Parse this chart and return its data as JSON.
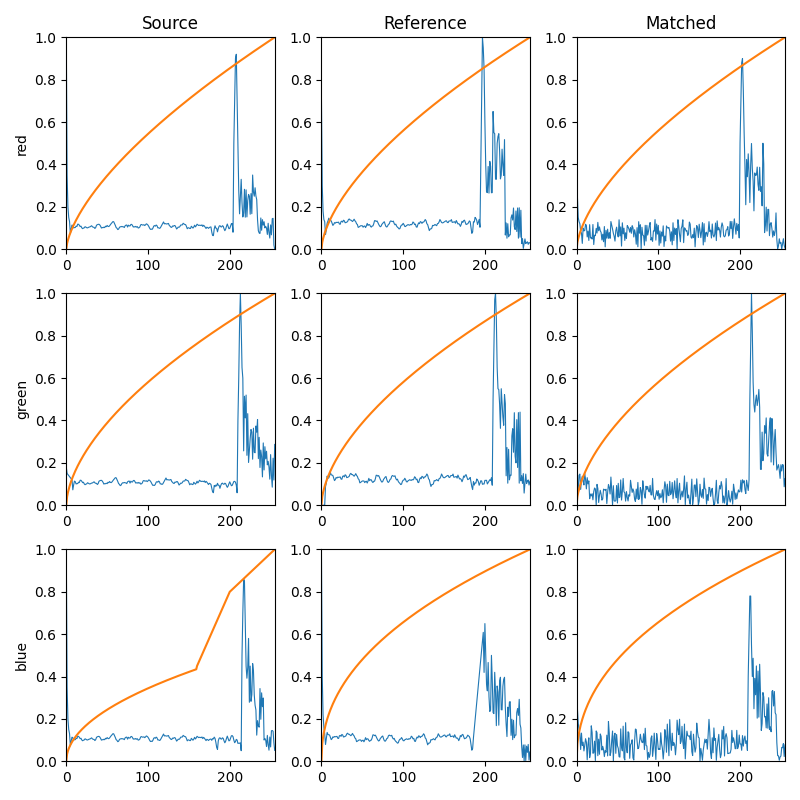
{
  "col_titles": [
    "Source",
    "Reference",
    "Matched"
  ],
  "row_labels": [
    "red",
    "green",
    "blue"
  ],
  "orange_color": "#ff7f0e",
  "blue_color": "#1f77b4",
  "figsize": [
    8.0,
    8.0
  ],
  "dpi": 100,
  "xlim": [
    0,
    255
  ],
  "ylim": [
    0,
    1.0
  ],
  "xticks": [
    0,
    100,
    200
  ],
  "yticks": [
    0.0,
    0.2,
    0.4,
    0.6,
    0.8,
    1.0
  ],
  "blue_linewidth": 0.8,
  "orange_linewidth": 1.5,
  "seed": 42
}
